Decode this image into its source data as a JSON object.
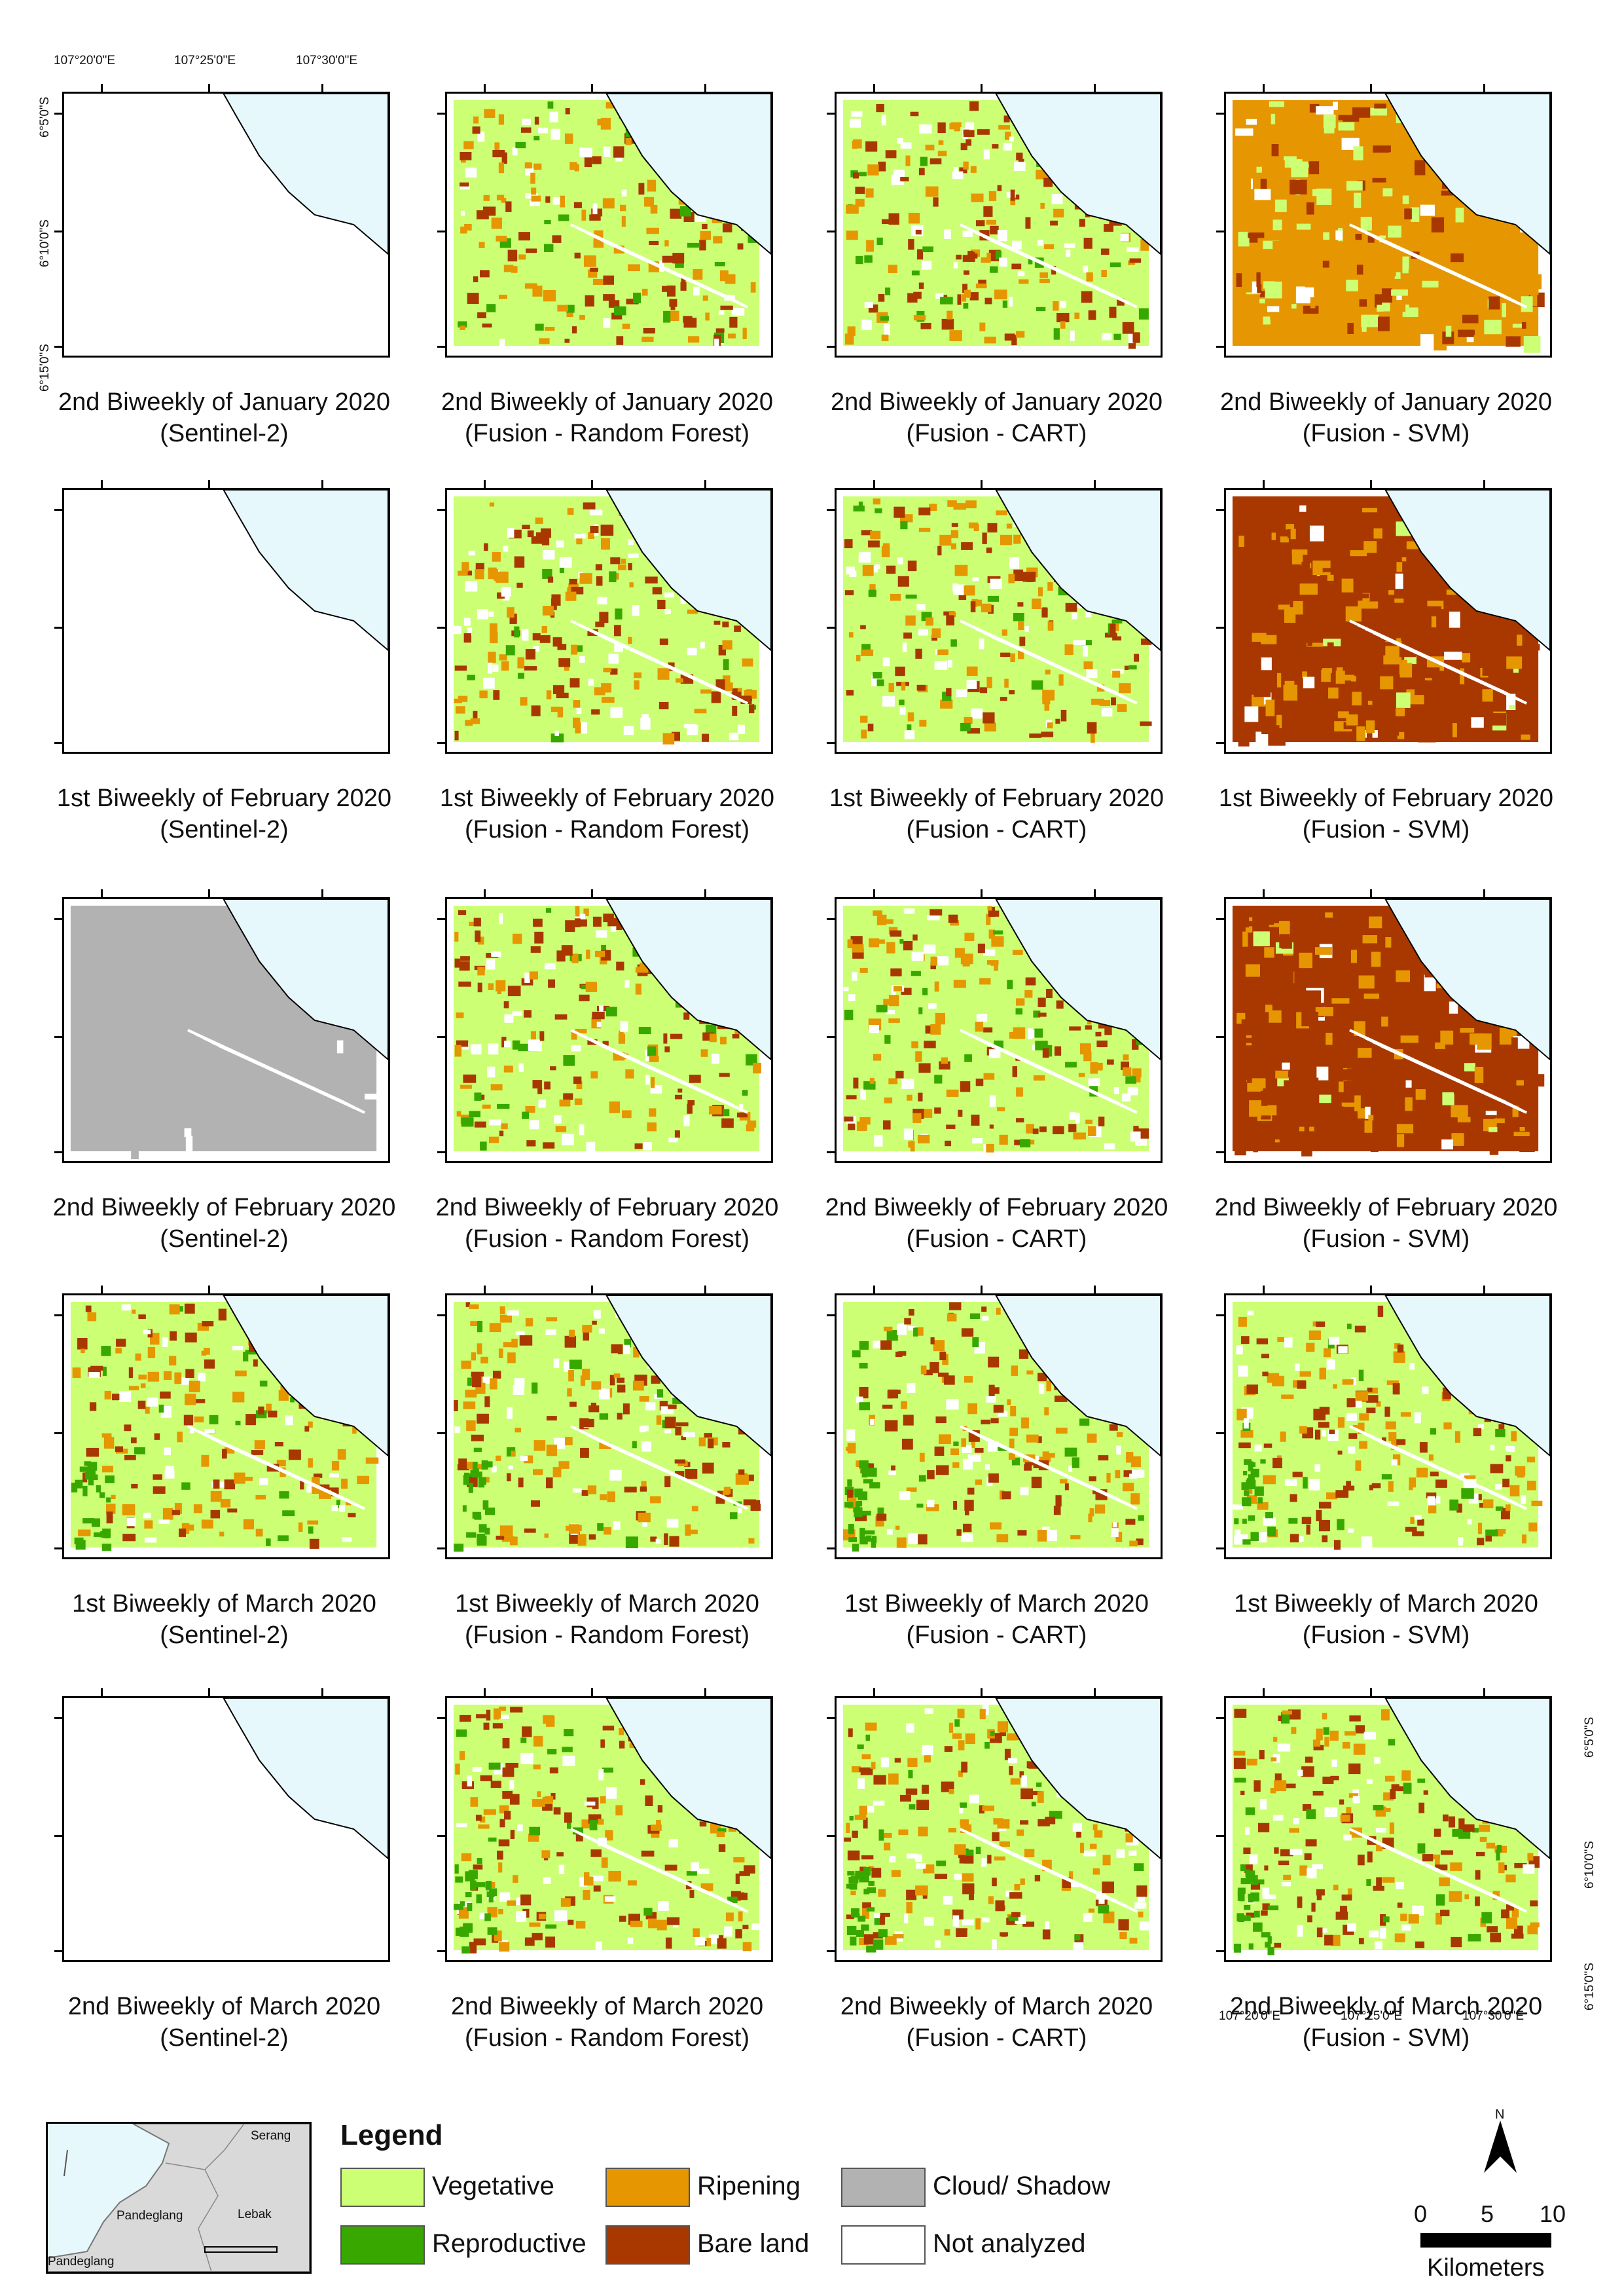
{
  "figure": {
    "top_longitudes": [
      "107°20'0\"E",
      "107°25'0\"E",
      "107°30'0\"E"
    ],
    "left_latitudes": [
      "6°5'0\"S",
      "6°10'0\"S",
      "6°15'0\"S"
    ],
    "bottom_longitudes": [
      "107°20'0\"E",
      "107°25'0\"E",
      "107°30'0\"E"
    ],
    "right_latitudes": [
      "6°5'0\"S",
      "6°10'0\"S",
      "6°15'0\"S"
    ],
    "columns": [
      {
        "method": "(Sentinel-2)"
      },
      {
        "method": "(Fusion - Random Forest)"
      },
      {
        "method": "(Fusion - CART)"
      },
      {
        "method": "(Fusion - SVM)"
      }
    ],
    "rows": [
      {
        "period": "2nd Biweekly of January 2020"
      },
      {
        "period": "1st Biweekly of February 2020"
      },
      {
        "period": "2nd Biweekly of February 2020"
      },
      {
        "period": "1st Biweekly of March 2020"
      },
      {
        "period": "2nd Biweekly of March 2020"
      }
    ],
    "panel_states": [
      [
        "empty",
        "classified",
        "classified",
        "classified"
      ],
      [
        "empty",
        "classified",
        "classified",
        "classified"
      ],
      [
        "cloud",
        "classified",
        "classified",
        "classified"
      ],
      [
        "classified",
        "classified",
        "classified",
        "classified"
      ],
      [
        "empty",
        "classified",
        "classified",
        "classified"
      ]
    ],
    "dominant_class": [
      [
        "none",
        "Vegetative",
        "Vegetative",
        "Ripening"
      ],
      [
        "none",
        "Vegetative",
        "Vegetative",
        "Bare land"
      ],
      [
        "Cloud/ Shadow",
        "Vegetative",
        "Vegetative",
        "Bare land"
      ],
      [
        "Vegetative",
        "Vegetative",
        "Vegetative",
        "Vegetative"
      ],
      [
        "none",
        "Vegetative",
        "Vegetative",
        "Vegetative"
      ]
    ],
    "sea_color": "#e6f8fc"
  },
  "legend": {
    "title": "Legend",
    "items": [
      {
        "label": "Vegetative",
        "color": "#ccff73"
      },
      {
        "label": "Ripening",
        "color": "#e69600"
      },
      {
        "label": "Cloud/ Shadow",
        "color": "#b2b2b2"
      },
      {
        "label": "Reproductive",
        "color": "#38a800"
      },
      {
        "label": "Bare land",
        "color": "#a83800"
      },
      {
        "label": "Not analyzed",
        "color": "#ffffff"
      }
    ]
  },
  "inset_map": {
    "labels": {
      "serang": "Serang",
      "pandeglang_1": "Pandeglang",
      "pandeglang_2": "Pandeglang",
      "lebak": "Lebak"
    }
  },
  "north_arrow": {
    "letter": "N"
  },
  "scale_bar": {
    "ticks": [
      "0",
      "5",
      "10"
    ],
    "unit": "Kilometers"
  }
}
